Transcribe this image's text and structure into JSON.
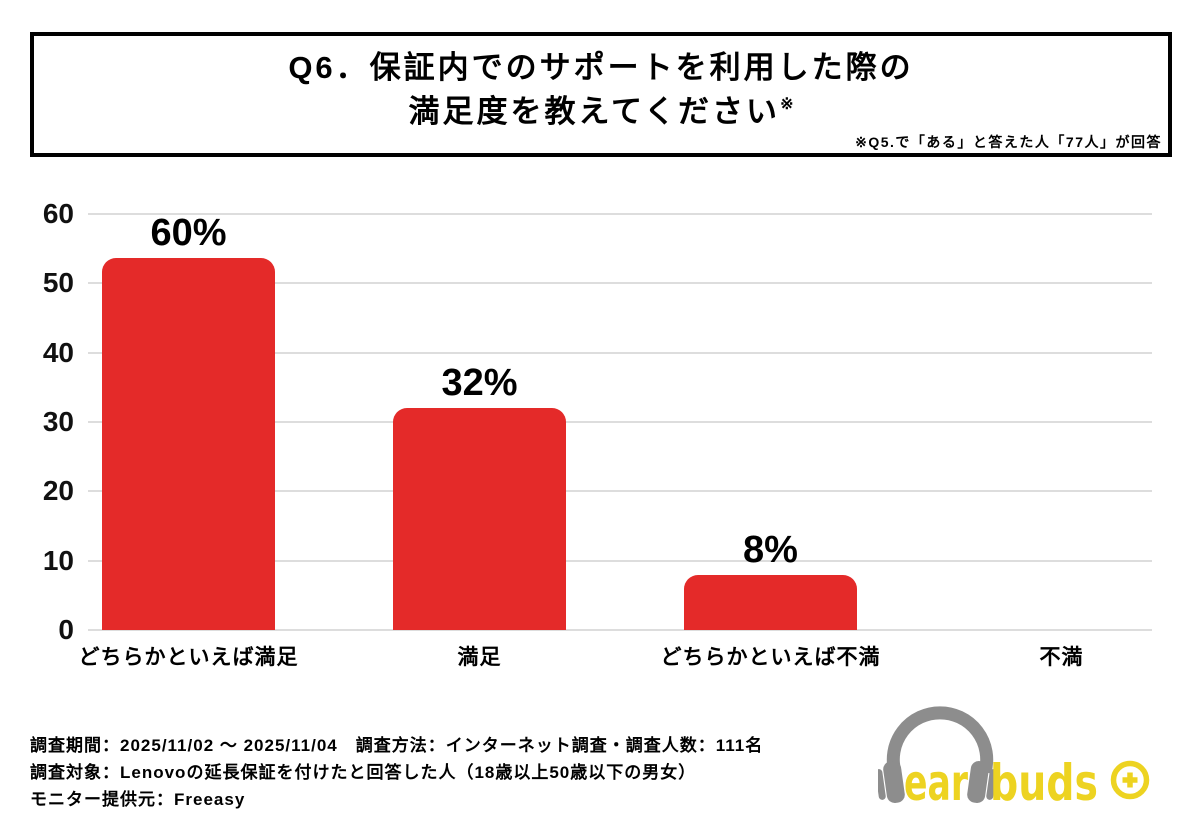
{
  "header": {
    "title_line1": "Q6．保証内でのサポートを利用した際の",
    "title_line2": "満足度を教えてください",
    "title_note_marker": "※",
    "footnote": "※Q5.で「ある」と答えた人「77人」が回答"
  },
  "chart_data": {
    "type": "bar",
    "title": "Q6．保証内でのサポートを利用した際の満足度を教えてください",
    "categories": [
      "どちらかといえば満足",
      "満足",
      "どちらかといえば不満",
      "不満"
    ],
    "values": [
      60,
      32,
      8,
      0
    ],
    "value_labels": [
      "60%",
      "32%",
      "8%",
      ""
    ],
    "xlabel": "",
    "ylabel": "",
    "ylim": [
      0,
      60
    ],
    "yticks": [
      0,
      10,
      20,
      30,
      40,
      50,
      60
    ],
    "grid": true,
    "legend_position": "none",
    "bar_color": "#E42A29",
    "grid_color": "#DDDDDD"
  },
  "footer": {
    "line1": "調査期間：2025/11/02 ～ 2025/11/04　調査方法：インターネット調査・調査人数：111名",
    "line2": "調査対象：Lenovoの延長保証を付けたと回答した人（18歳以上50歳以下の男女）",
    "line3": "モニター提供元：Freeasy"
  },
  "logo": {
    "text_ear": "ear",
    "text_buds": "buds",
    "colors": {
      "yellow": "#EDD321",
      "gray": "#8D8D8D"
    }
  }
}
